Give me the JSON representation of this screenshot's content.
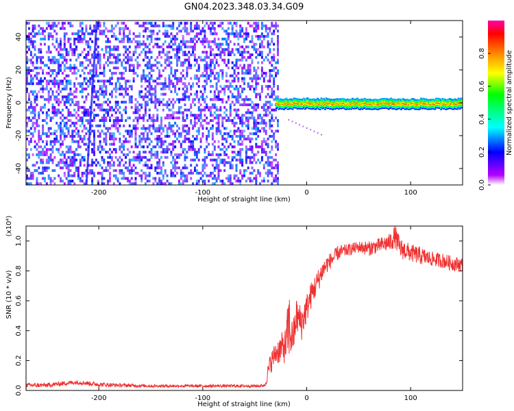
{
  "title": "GN04.2023.348.03.34.G09",
  "colors": {
    "axis": "#000000",
    "snr_line": "#f03030",
    "spectro_background": "#ffffff",
    "spectro_noise": "#7b2cff",
    "spectro_noise_light": "#d8c8ff",
    "spectro_signal": "#1b1bff"
  },
  "colorbar": {
    "label": "Normalized spectral amplitude",
    "ticks": [
      "0.0",
      "0.2",
      "0.4",
      "0.6",
      "0.8"
    ],
    "tick_values": [
      0.0,
      0.2,
      0.4,
      0.6,
      0.8
    ],
    "range": [
      0,
      1
    ],
    "colormap": "rainbow",
    "stops": [
      "#ffffff",
      "#b400ff",
      "#0000ff",
      "#00ffff",
      "#00ff00",
      "#ffff00",
      "#ff8800",
      "#ff0000",
      "#ff00aa"
    ]
  },
  "chart_data": [
    {
      "type": "heatmap",
      "panel": "spectrogram",
      "xlabel": "Height of straight line (km)",
      "ylabel": "Frequency (Hz)",
      "xlim": [
        -270,
        150
      ],
      "ylim": [
        -50,
        50
      ],
      "x_ticks": [
        -200,
        -100,
        0,
        100
      ],
      "x_tick_labels": [
        "-200",
        "-100",
        "0",
        "100"
      ],
      "y_ticks": [
        -40,
        -20,
        0,
        20,
        40
      ],
      "y_tick_labels": [
        "-40",
        "-20",
        "0",
        "20",
        "40"
      ],
      "noise_region_x": [
        -270,
        -28
      ],
      "noise_level_min": 0.05,
      "noise_level_max": 0.3,
      "signal_line": {
        "x_start": -30,
        "x_end": 150,
        "frequency": 0,
        "half_width_hz": 3,
        "amplitude": 0.9
      },
      "faint_streak": {
        "x": [
          -210,
          -200
        ],
        "frequency": [
          -50,
          50
        ]
      }
    },
    {
      "type": "line",
      "panel": "snr",
      "xlabel": "Height of straight line (km)",
      "ylabel": "SNR (10 * v/v)",
      "y_multiplier": "(x10⁴)",
      "xlim": [
        -270,
        150
      ],
      "ylim": [
        0,
        1.1
      ],
      "x_ticks": [
        -200,
        -100,
        0,
        100
      ],
      "x_tick_labels": [
        "-200",
        "-100",
        "0",
        "100"
      ],
      "y_ticks": [
        0.0,
        0.2,
        0.4,
        0.6,
        0.8,
        1.0
      ],
      "y_tick_labels": [
        "0.0",
        "0.2",
        "0.4",
        "0.6",
        "0.8",
        "1.0"
      ],
      "series": [
        {
          "x": [
            -270,
            -250,
            -230,
            -220,
            -200,
            -180,
            -150,
            -120,
            -100,
            -80,
            -60,
            -45,
            -40,
            -38,
            -35,
            -30,
            -25,
            -20,
            -17,
            -15,
            -12,
            -10,
            -5,
            0,
            5,
            10,
            15,
            20,
            25,
            30,
            40,
            50,
            60,
            70,
            80,
            85,
            90,
            100,
            110,
            120,
            130,
            140,
            150
          ],
          "values": [
            0.035,
            0.035,
            0.05,
            0.055,
            0.04,
            0.035,
            0.03,
            0.03,
            0.03,
            0.03,
            0.03,
            0.03,
            0.035,
            0.1,
            0.18,
            0.25,
            0.28,
            0.3,
            0.45,
            0.35,
            0.38,
            0.5,
            0.45,
            0.55,
            0.65,
            0.72,
            0.8,
            0.85,
            0.88,
            0.92,
            0.94,
            0.96,
            0.95,
            0.97,
            0.99,
            1.03,
            0.95,
            0.92,
            0.9,
            0.88,
            0.87,
            0.85,
            0.84
          ],
          "noise": [
            0.015,
            0.015,
            0.015,
            0.015,
            0.015,
            0.012,
            0.01,
            0.01,
            0.01,
            0.01,
            0.01,
            0.01,
            0.01,
            0.05,
            0.07,
            0.08,
            0.1,
            0.12,
            0.25,
            0.12,
            0.12,
            0.12,
            0.12,
            0.1,
            0.09,
            0.08,
            0.07,
            0.06,
            0.05,
            0.05,
            0.04,
            0.04,
            0.05,
            0.05,
            0.06,
            0.08,
            0.07,
            0.06,
            0.06,
            0.05,
            0.05,
            0.05,
            0.05
          ]
        }
      ]
    }
  ]
}
